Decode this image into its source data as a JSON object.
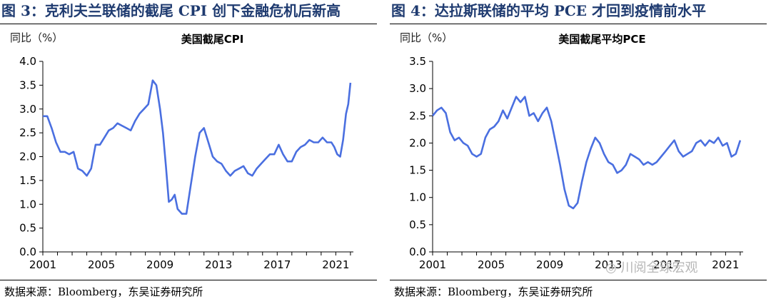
{
  "figures": [
    {
      "title": "图 3：克利夫兰联储的截尾 CPI 创下金融危机后新高",
      "source": "数据来源：Bloomberg，东吴证券研究所"
    },
    {
      "title": "图 4：达拉斯联储的平均 PCE 才回到疫情前水平",
      "source": "数据来源：Bloomberg，东吴证券研究所"
    }
  ],
  "watermark": "川阅全球宏观",
  "chart_data": [
    {
      "type": "line",
      "title": "美国截尾CPI",
      "ylabel": "同比（%）",
      "ylim": [
        0,
        4
      ],
      "yticks": [
        "0.0",
        "0.5",
        "1.0",
        "1.5",
        "2.0",
        "2.5",
        "3.0",
        "3.5",
        "4.0"
      ],
      "xlim": [
        2001,
        2022.2
      ],
      "xticks": [
        "2001",
        "2005",
        "2009",
        "2013",
        "2017",
        "2021"
      ],
      "grid": false,
      "color": "#4a6fe0",
      "series": [
        {
          "x": [
            2001.0,
            2001.3,
            2001.6,
            2001.9,
            2002.2,
            2002.5,
            2002.8,
            2003.1,
            2003.4,
            2003.7,
            2004.0,
            2004.3,
            2004.6,
            2004.9,
            2005.2,
            2005.5,
            2005.8,
            2006.1,
            2006.4,
            2006.7,
            2007.0,
            2007.3,
            2007.6,
            2007.9,
            2008.2,
            2008.5,
            2008.75,
            2009.0,
            2009.2,
            2009.4,
            2009.6,
            2009.8,
            2010.0,
            2010.2,
            2010.5,
            2010.8,
            2011.1,
            2011.4,
            2011.7,
            2012.0,
            2012.3,
            2012.6,
            2012.9,
            2013.2,
            2013.5,
            2013.8,
            2014.1,
            2014.4,
            2014.7,
            2015.0,
            2015.3,
            2015.6,
            2015.9,
            2016.2,
            2016.5,
            2016.8,
            2017.1,
            2017.4,
            2017.7,
            2018.0,
            2018.3,
            2018.6,
            2018.9,
            2019.2,
            2019.5,
            2019.8,
            2020.1,
            2020.4,
            2020.7,
            2020.9,
            2021.1,
            2021.3,
            2021.5,
            2021.7,
            2021.85,
            2022.0
          ],
          "y": [
            2.85,
            2.85,
            2.6,
            2.3,
            2.1,
            2.1,
            2.05,
            2.1,
            1.75,
            1.7,
            1.6,
            1.75,
            2.25,
            2.25,
            2.4,
            2.55,
            2.6,
            2.7,
            2.65,
            2.6,
            2.55,
            2.75,
            2.9,
            3.0,
            3.1,
            3.6,
            3.5,
            3.0,
            2.5,
            1.8,
            1.05,
            1.1,
            1.2,
            0.9,
            0.8,
            0.8,
            1.4,
            2.0,
            2.5,
            2.6,
            2.3,
            2.0,
            1.9,
            1.85,
            1.7,
            1.6,
            1.7,
            1.75,
            1.8,
            1.65,
            1.6,
            1.75,
            1.85,
            1.95,
            2.05,
            2.05,
            2.25,
            2.05,
            1.9,
            1.9,
            2.1,
            2.2,
            2.25,
            2.35,
            2.3,
            2.3,
            2.4,
            2.3,
            2.3,
            2.2,
            2.05,
            2.0,
            2.35,
            2.9,
            3.1,
            3.55
          ]
        }
      ]
    },
    {
      "type": "line",
      "title": "美国截尾平均PCE",
      "ylabel": "同比（%）",
      "ylim": [
        0,
        3.5
      ],
      "yticks": [
        "0.0",
        "0.5",
        "1.0",
        "1.5",
        "2.0",
        "2.5",
        "3.0",
        "3.5"
      ],
      "xlim": [
        2001,
        2022.2
      ],
      "xticks": [
        "2001",
        "2005",
        "2009",
        "2013",
        "2017",
        "2021"
      ],
      "grid": false,
      "color": "#4a6fe0",
      "series": [
        {
          "x": [
            2001.0,
            2001.3,
            2001.6,
            2001.9,
            2002.2,
            2002.5,
            2002.8,
            2003.1,
            2003.4,
            2003.7,
            2004.0,
            2004.3,
            2004.6,
            2004.9,
            2005.2,
            2005.5,
            2005.8,
            2006.1,
            2006.4,
            2006.7,
            2007.0,
            2007.3,
            2007.6,
            2007.9,
            2008.2,
            2008.5,
            2008.8,
            2009.1,
            2009.4,
            2009.7,
            2010.0,
            2010.3,
            2010.6,
            2010.9,
            2011.2,
            2011.5,
            2011.8,
            2012.1,
            2012.4,
            2012.7,
            2013.0,
            2013.3,
            2013.6,
            2013.9,
            2014.2,
            2014.5,
            2014.8,
            2015.1,
            2015.4,
            2015.7,
            2016.0,
            2016.3,
            2016.6,
            2016.9,
            2017.2,
            2017.5,
            2017.8,
            2018.1,
            2018.4,
            2018.7,
            2019.0,
            2019.3,
            2019.6,
            2019.9,
            2020.2,
            2020.5,
            2020.8,
            2021.1,
            2021.4,
            2021.7,
            2022.0
          ],
          "y": [
            2.5,
            2.6,
            2.65,
            2.55,
            2.2,
            2.05,
            2.1,
            2.0,
            1.95,
            1.8,
            1.75,
            1.8,
            2.1,
            2.25,
            2.3,
            2.4,
            2.6,
            2.45,
            2.65,
            2.85,
            2.75,
            2.85,
            2.5,
            2.55,
            2.4,
            2.55,
            2.65,
            2.4,
            2.0,
            1.6,
            1.15,
            0.85,
            0.8,
            0.9,
            1.3,
            1.65,
            1.9,
            2.1,
            2.0,
            1.8,
            1.65,
            1.6,
            1.45,
            1.5,
            1.6,
            1.8,
            1.75,
            1.7,
            1.6,
            1.65,
            1.6,
            1.65,
            1.75,
            1.85,
            1.95,
            2.05,
            1.85,
            1.75,
            1.8,
            1.85,
            2.0,
            2.05,
            1.95,
            2.05,
            2.0,
            2.1,
            1.95,
            2.0,
            1.75,
            1.8,
            2.05
          ]
        }
      ]
    }
  ]
}
